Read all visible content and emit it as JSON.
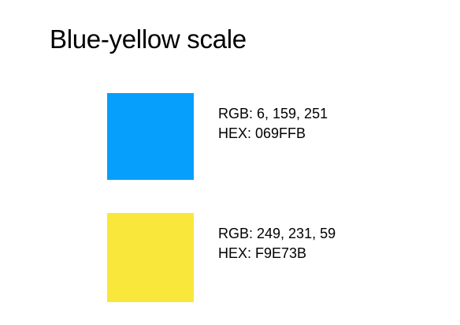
{
  "title": "Blue-yellow scale",
  "colors": [
    {
      "rgb_text": "RGB: 6, 159, 251",
      "hex_text": "HEX: 069FFB",
      "swatch_color": "#069FFB"
    },
    {
      "rgb_text": "RGB: 249, 231, 59",
      "hex_text": "HEX: F9E73B",
      "swatch_color": "#F9E73B"
    }
  ]
}
